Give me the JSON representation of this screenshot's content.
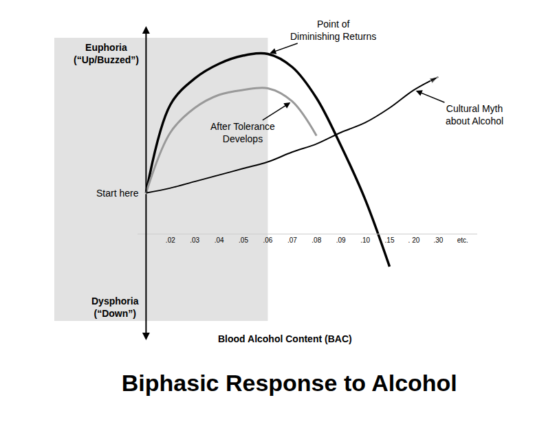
{
  "chart_data": {
    "type": "line",
    "title": "Biphasic Response to Alcohol",
    "x_title": "Blood Alcohol Content (BAC)",
    "categories": [
      null,
      ".02",
      ".03",
      ".04",
      ".05",
      ".06",
      ".07",
      ".08",
      ".09",
      ".10",
      ".15",
      ". 20",
      ".30",
      "etc."
    ],
    "ylim": [
      -9,
      10.2
    ],
    "tick_labels": "x",
    "grid": false,
    "y_labels": {
      "top": [
        "Euphoria",
        "(“Up/Buzzed”)"
      ],
      "middle": [
        "Start here"
      ],
      "bottom": [
        "Dysphoria",
        "(“Down”)"
      ]
    },
    "shaded_to": ".06",
    "series": [
      {
        "color": "#000000",
        "values": [
          0,
          5.4,
          7.0,
          7.9,
          8.4,
          8.5,
          7.7,
          5.8,
          2.9,
          -0.4,
          -4.5,
          null,
          null,
          null
        ],
        "annotation": {
          "text": [
            "Point of",
            "Diminishing Returns"
          ],
          "at": ".06"
        }
      },
      {
        "color": "#999999",
        "values": [
          0,
          3.7,
          5.2,
          6.0,
          6.3,
          6.4,
          5.6,
          3.5,
          null,
          null,
          null,
          null,
          null,
          null
        ],
        "annotation": {
          "text": [
            "After Tolerance",
            "Develops"
          ],
          "at": ".07"
        }
      },
      {
        "color": "#000000",
        "marker": "arrow",
        "values": [
          0,
          0.3,
          0.7,
          1.1,
          1.5,
          1.9,
          2.5,
          3.0,
          3.7,
          4.3,
          5.2,
          6.3,
          7.1,
          null
        ],
        "annotation": {
          "text": [
            "Cultural Myth",
            "about Alcohol"
          ],
          "at": ". 20"
        }
      }
    ]
  }
}
